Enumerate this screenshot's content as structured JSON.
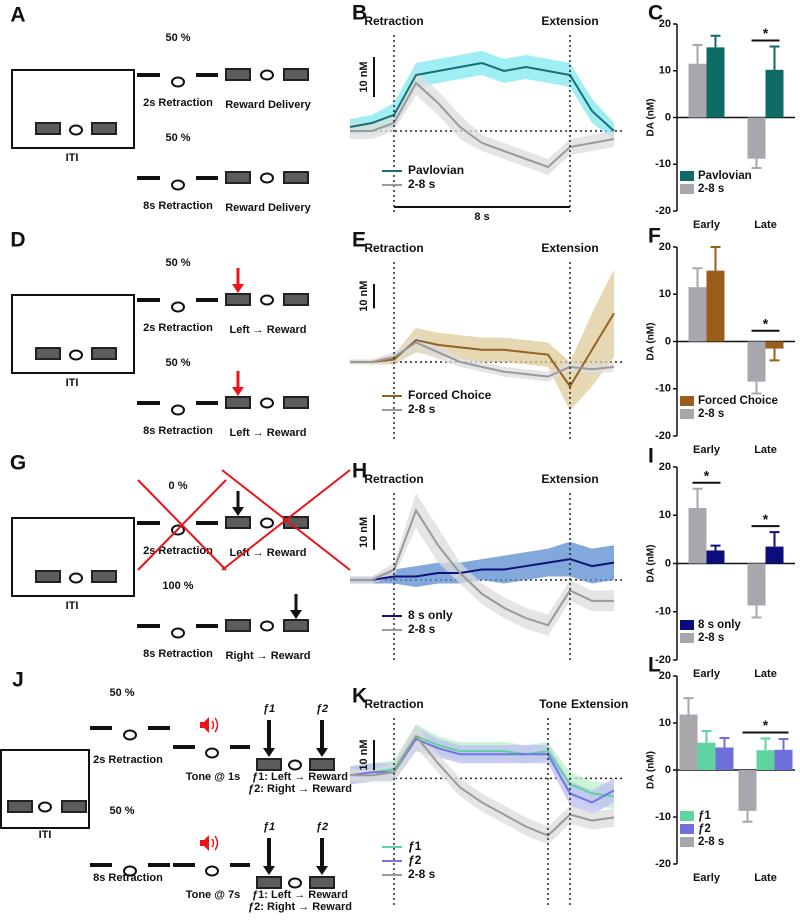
{
  "schematics": [
    {
      "panel": "A",
      "iti": "ITI",
      "trials": [
        {
          "percent": "50 %",
          "retraction": "2s Retraction",
          "outcome": "Reward Delivery"
        },
        {
          "percent": "50 %",
          "retraction": "8s Retraction",
          "outcome": "Reward Delivery"
        }
      ]
    },
    {
      "panel": "D",
      "iti": "ITI",
      "trials": [
        {
          "percent": "50 %",
          "retraction": "2s Retraction",
          "outcome": "Left → Reward"
        },
        {
          "percent": "50 %",
          "retraction": "8s Retraction",
          "outcome": "Left → Reward"
        }
      ]
    },
    {
      "panel": "G",
      "iti": "ITI",
      "trials": [
        {
          "percent": "0 %",
          "retraction": "2s Retraction",
          "outcome": "Left → Reward"
        },
        {
          "percent": "100 %",
          "retraction": "8s Retraction",
          "outcome": "Right → Reward"
        }
      ]
    },
    {
      "panel": "J",
      "iti": "ITI",
      "trials": [
        {
          "percent": "50 %",
          "retraction": "2s Retraction",
          "tone": "Tone @ 1s",
          "levers": [
            "ƒ1",
            "ƒ2"
          ],
          "outcome": [
            "ƒ1: Left → Reward",
            "ƒ2: Right → Reward"
          ]
        },
        {
          "percent": "50 %",
          "retraction": "8s Retraction",
          "tone": "Tone @ 7s",
          "levers": [
            "ƒ1",
            "ƒ2"
          ],
          "outcome": [
            "ƒ1: Left → Reward",
            "ƒ2: Right → Reward"
          ]
        }
      ]
    }
  ],
  "chart_data": [
    {
      "type": "line",
      "panel": "B",
      "x": [
        -2,
        -1,
        0,
        1,
        2,
        3,
        4,
        5,
        6,
        7,
        8,
        9,
        10
      ],
      "xlim": [
        -2,
        10.5
      ],
      "ylim": [
        -21,
        24
      ],
      "markers": [
        {
          "x": 0,
          "label": "Retraction"
        },
        {
          "x": 8,
          "label": "Extension"
        }
      ],
      "scalebar_y": {
        "value": 10,
        "label": "10 nM"
      },
      "scalebar_x": {
        "value": 8,
        "label": "8 s"
      },
      "series": [
        {
          "name": "Pavlovian",
          "color": "#1a6f70",
          "band_color": "#7ee8ef",
          "values": [
            1,
            2,
            4,
            14,
            15,
            16,
            17,
            15,
            16,
            15,
            14,
            5,
            0
          ],
          "errors": [
            2,
            2,
            3,
            3,
            3,
            3,
            3,
            3,
            3,
            3,
            3,
            3,
            2
          ]
        },
        {
          "name": "2-8 s",
          "color": "#9a9a9a",
          "band_color": "#dcdcdc",
          "values": [
            0,
            0,
            2,
            12,
            7,
            1,
            -3,
            -5,
            -7,
            -9,
            -4,
            -3,
            -2
          ],
          "errors": [
            2,
            2,
            2,
            3,
            3,
            3,
            2,
            2,
            2,
            2,
            2,
            2,
            2
          ]
        }
      ]
    },
    {
      "type": "bar",
      "panel": "C",
      "ylabel": "DA (nM)",
      "categories": [
        "Early",
        "Late"
      ],
      "ylim": [
        -20,
        20
      ],
      "yticks": [
        -20,
        -10,
        0,
        10,
        20
      ],
      "series": [
        {
          "name": "Pavlovian",
          "color": "#0f6b66",
          "values": [
            15,
            10.2
          ],
          "errors": [
            2.5,
            5
          ]
        },
        {
          "name": "2-8 s",
          "color": "#a7a7ad",
          "values": [
            11.5,
            -8.8
          ],
          "errors": [
            4,
            2
          ]
        }
      ],
      "significance": [
        {
          "label": "*",
          "category": 1
        }
      ]
    },
    {
      "type": "line",
      "panel": "E",
      "x": [
        -2,
        -1,
        0,
        1,
        2,
        3,
        4,
        5,
        6,
        7,
        8,
        9,
        10
      ],
      "xlim": [
        -2,
        10.5
      ],
      "ylim": [
        -32,
        41
      ],
      "markers": [
        {
          "x": 0,
          "label": "Retraction"
        },
        {
          "x": 8,
          "label": "Extension"
        }
      ],
      "scalebar_y": {
        "value": 10,
        "label": "10 nM"
      },
      "series": [
        {
          "name": "Forced Choice",
          "color": "#946322",
          "band_color": "#dccb98",
          "values": [
            0,
            0,
            1,
            9,
            7,
            6,
            5,
            5,
            4,
            3,
            -10,
            5,
            20
          ],
          "errors": [
            1,
            1,
            2,
            5,
            5,
            5,
            5,
            5,
            5,
            5,
            10,
            15,
            18
          ]
        },
        {
          "name": "2-8 s",
          "color": "#9a9a9a",
          "band_color": "#dcdcdc",
          "values": [
            0,
            0,
            2,
            8,
            4,
            0,
            -2,
            -4,
            -5,
            -6,
            -2,
            -3,
            -2
          ],
          "errors": [
            1,
            1,
            2,
            3,
            3,
            2,
            2,
            2,
            2,
            2,
            2,
            2,
            2
          ]
        }
      ]
    },
    {
      "type": "bar",
      "panel": "F",
      "ylabel": "DA (nM)",
      "categories": [
        "Early",
        "Late"
      ],
      "ylim": [
        -20,
        20
      ],
      "yticks": [
        -20,
        -10,
        0,
        10,
        20
      ],
      "series": [
        {
          "name": "Forced Choice",
          "color": "#9a5d1c",
          "values": [
            15,
            -1.5
          ],
          "errors": [
            5,
            2.5
          ]
        },
        {
          "name": "2-8 s",
          "color": "#a7a7ad",
          "values": [
            11.5,
            -8.5
          ],
          "errors": [
            4,
            2.5
          ]
        }
      ],
      "significance": [
        {
          "label": "*",
          "category": 1
        }
      ]
    },
    {
      "type": "line",
      "panel": "H",
      "x": [
        -2,
        -1,
        0,
        1,
        2,
        3,
        4,
        5,
        6,
        7,
        8,
        9,
        10
      ],
      "xlim": [
        -2,
        10.5
      ],
      "ylim": [
        -23,
        25
      ],
      "markers": [
        {
          "x": 0,
          "label": "Retraction"
        },
        {
          "x": 8,
          "label": "Extension"
        }
      ],
      "scalebar_y": {
        "value": 10,
        "label": "10 nM"
      },
      "series": [
        {
          "name": "8 s only",
          "color": "#111177",
          "band_color": "#5a8bcf",
          "values": [
            0,
            0,
            1,
            1,
            2,
            2,
            3,
            3,
            4,
            5,
            6,
            4,
            5
          ],
          "errors": [
            1,
            1,
            2,
            3,
            3,
            3,
            3,
            4,
            4,
            4,
            5,
            5,
            5
          ]
        },
        {
          "name": "2-8 s",
          "color": "#9a9a9a",
          "band_color": "#dcdcdc",
          "values": [
            0,
            0,
            3,
            20,
            10,
            2,
            -4,
            -8,
            -11,
            -13,
            -3,
            -6,
            -6
          ],
          "errors": [
            1,
            1,
            2,
            5,
            5,
            3,
            3,
            3,
            3,
            3,
            3,
            3,
            3
          ]
        }
      ]
    },
    {
      "type": "bar",
      "panel": "I",
      "ylabel": "DA (nM)",
      "categories": [
        "Early",
        "Late"
      ],
      "ylim": [
        -20,
        20
      ],
      "yticks": [
        -20,
        -10,
        0,
        10,
        20
      ],
      "series": [
        {
          "name": "8 s only",
          "color": "#0c0c7a",
          "values": [
            2.7,
            3.5
          ],
          "errors": [
            1,
            3
          ]
        },
        {
          "name": "2-8 s",
          "color": "#a7a7ad",
          "values": [
            11.5,
            -8.7
          ],
          "errors": [
            4,
            2.5
          ]
        }
      ],
      "significance": [
        {
          "label": "*",
          "category": 0
        },
        {
          "label": "*",
          "category": 1
        }
      ]
    },
    {
      "type": "line",
      "panel": "K",
      "x": [
        -2,
        -1,
        0,
        1,
        2,
        3,
        4,
        5,
        6,
        7,
        8,
        9,
        10
      ],
      "xlim": [
        -2,
        10.5
      ],
      "ylim": [
        -42,
        20
      ],
      "markers": [
        {
          "x": 0,
          "label": "Retraction"
        },
        {
          "x": 7,
          "label": "Tone"
        },
        {
          "x": 8,
          "label": "Extension"
        }
      ],
      "scalebar_y": {
        "value": 10,
        "label": "10 nM"
      },
      "series": [
        {
          "name": "ƒ1",
          "color": "#5fd39a",
          "band_color": "#b8f0c8",
          "values": [
            1,
            2,
            3,
            14,
            11,
            9,
            9,
            9,
            8,
            9,
            -2,
            -5,
            -6
          ],
          "errors": [
            3,
            3,
            3,
            4,
            3,
            3,
            3,
            3,
            3,
            3,
            4,
            4,
            4
          ]
        },
        {
          "name": "ƒ2",
          "color": "#7474e6",
          "band_color": "#bdbdf2",
          "values": [
            1,
            2,
            2,
            13,
            10,
            8,
            8,
            8,
            8,
            8,
            -5,
            -8,
            -4
          ],
          "errors": [
            3,
            3,
            3,
            4,
            3,
            3,
            3,
            3,
            3,
            3,
            4,
            4,
            4
          ]
        },
        {
          "name": "2-8 s",
          "color": "#9a9a9a",
          "band_color": "#dcdcdc",
          "values": [
            1,
            1,
            2,
            14,
            5,
            -3,
            -8,
            -12,
            -16,
            -19,
            -12,
            -14,
            -13
          ],
          "errors": [
            2,
            2,
            3,
            4,
            3,
            3,
            3,
            3,
            3,
            3,
            3,
            3,
            3
          ]
        }
      ]
    },
    {
      "type": "bar",
      "panel": "L",
      "ylabel": "DA (nM)",
      "categories": [
        "Early",
        "Late"
      ],
      "ylim": [
        -20,
        20
      ],
      "yticks": [
        -20,
        -10,
        0,
        10,
        20
      ],
      "series": [
        {
          "name": "ƒ1",
          "color": "#5fd3a0",
          "values": [
            5.8,
            4.2
          ],
          "errors": [
            2.5,
            2.5
          ]
        },
        {
          "name": "ƒ2",
          "color": "#7070dc",
          "values": [
            4.8,
            4.3
          ],
          "errors": [
            2,
            2.3
          ]
        },
        {
          "name": "2-8 s",
          "color": "#a7a7ad",
          "values": [
            11.8,
            -8.7
          ],
          "errors": [
            3.5,
            2.3
          ]
        }
      ],
      "significance": [
        {
          "label": "*",
          "category": 1
        }
      ]
    }
  ]
}
